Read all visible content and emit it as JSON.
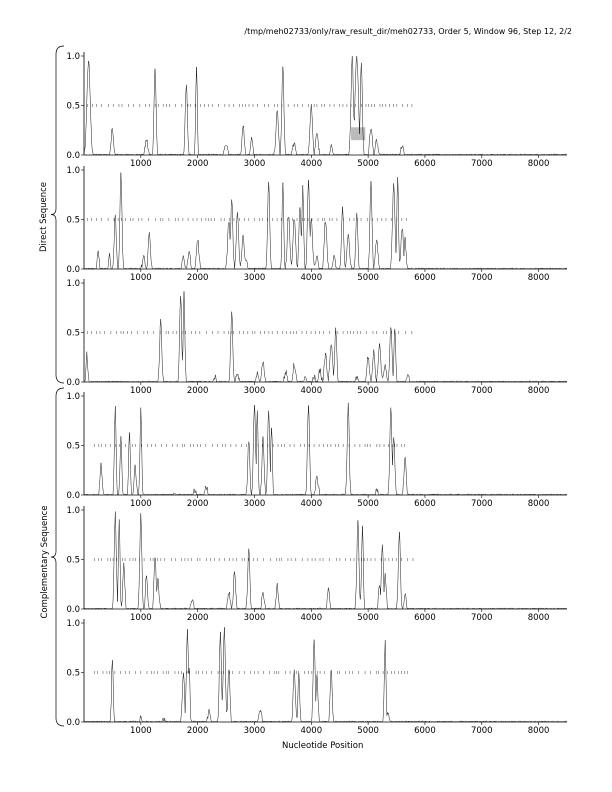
{
  "header": "/tmp/meh02733/only/raw_result_dir/meh02733, Order 5, Window 96, Step 12, 2/2",
  "xlabel": "Nucleotide Position",
  "group_labels": {
    "direct": "Direct Sequence",
    "complementary": "Complementary Sequence"
  },
  "chart_data": {
    "type": "line",
    "title": "",
    "xlabel": "Nucleotide Position",
    "ylabel": "",
    "xlim": [
      0,
      8500
    ],
    "ylim": [
      0,
      1.0
    ],
    "x_ticks": [
      1000,
      2000,
      3000,
      4000,
      5000,
      6000,
      7000,
      8000
    ],
    "y_ticks": [
      0.0,
      0.5,
      1.0
    ],
    "grid": false,
    "legend": "none",
    "panels": [
      {
        "group": "direct",
        "frame": 1,
        "peaks": [
          [
            80,
            0.95,
            40
          ],
          [
            500,
            0.28,
            25
          ],
          [
            1100,
            0.15,
            30
          ],
          [
            1250,
            0.88,
            25
          ],
          [
            1800,
            0.72,
            25
          ],
          [
            1980,
            0.88,
            20
          ],
          [
            2500,
            0.08,
            40
          ],
          [
            2800,
            0.32,
            25
          ],
          [
            2950,
            0.2,
            25
          ],
          [
            3400,
            0.45,
            30
          ],
          [
            3500,
            0.9,
            25
          ],
          [
            3700,
            0.12,
            30
          ],
          [
            4000,
            0.5,
            30
          ],
          [
            4100,
            0.22,
            30
          ],
          [
            4350,
            0.08,
            30
          ],
          [
            4720,
            0.98,
            30
          ],
          [
            4800,
            0.99,
            40
          ],
          [
            4880,
            0.95,
            25
          ],
          [
            5050,
            0.28,
            30
          ],
          [
            5150,
            0.14,
            30
          ],
          [
            5600,
            0.1,
            30
          ]
        ],
        "ticks_start": 60,
        "ticks_end": 5800,
        "highlight": {
          "x0": 4700,
          "x1": 4950,
          "y0": 0.15,
          "y1": 0.28
        }
      },
      {
        "group": "direct",
        "frame": 2,
        "peaks": [
          [
            250,
            0.2,
            20
          ],
          [
            450,
            0.15,
            20
          ],
          [
            550,
            0.55,
            25
          ],
          [
            650,
            0.96,
            25
          ],
          [
            1050,
            0.12,
            30
          ],
          [
            1150,
            0.38,
            25
          ],
          [
            1750,
            0.12,
            30
          ],
          [
            1850,
            0.18,
            30
          ],
          [
            2000,
            0.3,
            30
          ],
          [
            2550,
            0.5,
            30
          ],
          [
            2600,
            0.73,
            25
          ],
          [
            2700,
            0.55,
            30
          ],
          [
            2800,
            0.35,
            30
          ],
          [
            2850,
            0.1,
            30
          ],
          [
            3250,
            0.9,
            25
          ],
          [
            3500,
            0.88,
            20
          ],
          [
            3600,
            0.55,
            30
          ],
          [
            3700,
            0.52,
            30
          ],
          [
            3800,
            0.65,
            25
          ],
          [
            3850,
            0.85,
            20
          ],
          [
            3950,
            0.92,
            25
          ],
          [
            4000,
            0.5,
            30
          ],
          [
            4100,
            0.12,
            30
          ],
          [
            4250,
            0.5,
            30
          ],
          [
            4400,
            0.12,
            30
          ],
          [
            4550,
            0.6,
            25
          ],
          [
            4650,
            0.35,
            30
          ],
          [
            4800,
            0.58,
            25
          ],
          [
            5050,
            0.9,
            25
          ],
          [
            5150,
            0.3,
            30
          ],
          [
            5450,
            0.88,
            30
          ],
          [
            5520,
            0.95,
            20
          ],
          [
            5600,
            0.42,
            30
          ],
          [
            5650,
            0.3,
            25
          ]
        ],
        "ticks_start": 60,
        "ticks_end": 5700
      },
      {
        "group": "direct",
        "frame": 3,
        "peaks": [
          [
            50,
            0.28,
            20
          ],
          [
            1350,
            0.62,
            25
          ],
          [
            1700,
            0.88,
            25
          ],
          [
            1760,
            0.92,
            20
          ],
          [
            2300,
            0.05,
            30
          ],
          [
            2600,
            0.7,
            25
          ],
          [
            2700,
            0.08,
            30
          ],
          [
            3050,
            0.08,
            30
          ],
          [
            3150,
            0.2,
            30
          ],
          [
            3550,
            0.1,
            30
          ],
          [
            3700,
            0.18,
            30
          ],
          [
            3900,
            0.04,
            30
          ],
          [
            4050,
            0.05,
            30
          ],
          [
            4150,
            0.12,
            30
          ],
          [
            4250,
            0.28,
            30
          ],
          [
            4350,
            0.4,
            30
          ],
          [
            4430,
            0.52,
            25
          ],
          [
            4800,
            0.05,
            30
          ],
          [
            5000,
            0.25,
            30
          ],
          [
            5100,
            0.3,
            25
          ],
          [
            5200,
            0.38,
            30
          ],
          [
            5300,
            0.15,
            30
          ],
          [
            5400,
            0.58,
            25
          ],
          [
            5470,
            0.55,
            20
          ],
          [
            5700,
            0.06,
            30
          ]
        ],
        "ticks_start": 60,
        "ticks_end": 5800
      },
      {
        "group": "complementary",
        "frame": 1,
        "peaks": [
          [
            300,
            0.32,
            25
          ],
          [
            550,
            0.9,
            20
          ],
          [
            650,
            0.6,
            20
          ],
          [
            800,
            0.65,
            20
          ],
          [
            900,
            0.3,
            25
          ],
          [
            1000,
            0.9,
            20
          ],
          [
            1600,
            0.03,
            40
          ],
          [
            1950,
            0.04,
            40
          ],
          [
            2150,
            0.07,
            40
          ],
          [
            2900,
            0.55,
            25
          ],
          [
            3000,
            0.93,
            25
          ],
          [
            3050,
            0.85,
            20
          ],
          [
            3150,
            0.6,
            25
          ],
          [
            3250,
            0.86,
            25
          ],
          [
            3300,
            0.7,
            20
          ],
          [
            3950,
            0.92,
            25
          ],
          [
            4100,
            0.18,
            30
          ],
          [
            4650,
            0.92,
            25
          ],
          [
            5150,
            0.05,
            30
          ],
          [
            5400,
            0.9,
            25
          ],
          [
            5450,
            0.6,
            25
          ],
          [
            5650,
            0.4,
            25
          ]
        ],
        "ticks_start": 180,
        "ticks_end": 5700
      },
      {
        "group": "complementary",
        "frame": 2,
        "peaks": [
          [
            550,
            0.97,
            25
          ],
          [
            620,
            0.92,
            20
          ],
          [
            700,
            0.45,
            25
          ],
          [
            1000,
            0.96,
            25
          ],
          [
            1100,
            0.35,
            25
          ],
          [
            1250,
            0.55,
            25
          ],
          [
            1300,
            0.3,
            25
          ],
          [
            1900,
            0.1,
            30
          ],
          [
            2550,
            0.18,
            30
          ],
          [
            2650,
            0.4,
            25
          ],
          [
            2900,
            0.6,
            25
          ],
          [
            3150,
            0.15,
            30
          ],
          [
            3400,
            0.25,
            25
          ],
          [
            4300,
            0.2,
            25
          ],
          [
            4820,
            0.92,
            25
          ],
          [
            4900,
            0.85,
            20
          ],
          [
            5200,
            0.25,
            25
          ],
          [
            5250,
            0.65,
            25
          ],
          [
            5300,
            0.35,
            25
          ],
          [
            5550,
            0.8,
            25
          ],
          [
            5650,
            0.15,
            25
          ]
        ],
        "ticks_start": 180,
        "ticks_end": 5800
      },
      {
        "group": "complementary",
        "frame": 3,
        "peaks": [
          [
            500,
            0.65,
            20
          ],
          [
            1000,
            0.04,
            30
          ],
          [
            1400,
            0.04,
            30
          ],
          [
            1750,
            0.5,
            25
          ],
          [
            1820,
            0.92,
            25
          ],
          [
            1850,
            0.55,
            20
          ],
          [
            2200,
            0.1,
            30
          ],
          [
            2400,
            0.92,
            25
          ],
          [
            2470,
            0.95,
            25
          ],
          [
            2550,
            0.55,
            25
          ],
          [
            3100,
            0.12,
            30
          ],
          [
            3700,
            0.55,
            25
          ],
          [
            3780,
            0.5,
            20
          ],
          [
            4050,
            0.85,
            25
          ],
          [
            4100,
            0.45,
            25
          ],
          [
            4350,
            0.5,
            25
          ],
          [
            5300,
            0.82,
            20
          ],
          [
            5350,
            0.1,
            30
          ]
        ],
        "ticks_start": 180,
        "ticks_end": 5700
      }
    ]
  }
}
